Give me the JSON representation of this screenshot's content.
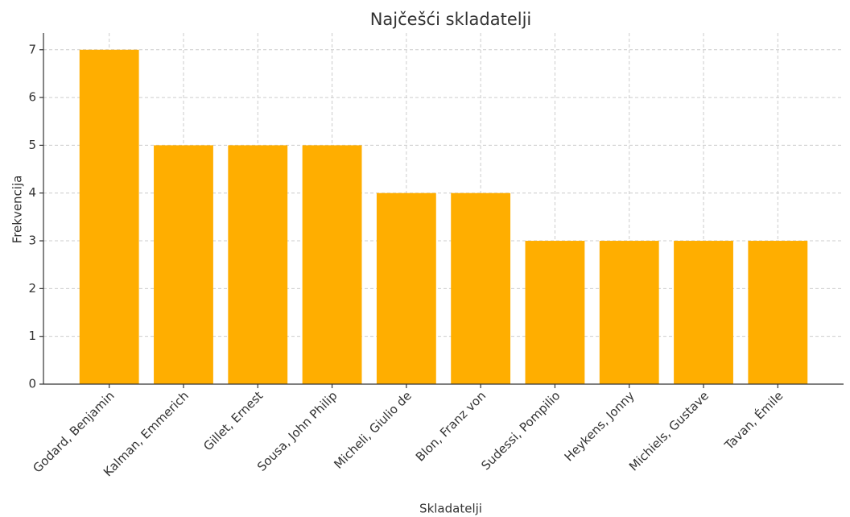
{
  "chart_data": {
    "type": "bar",
    "title": "Najčešći skladatelji",
    "xlabel": "Skladatelji",
    "ylabel": "Frekvencija",
    "categories": [
      "Godard, Benjamin",
      "Kalman, Emmerich",
      "Gillet, Ernest",
      "Sousa, John Philip",
      "Micheli, Giulio de",
      "Blon, Franz von",
      "Sudessi, Pompilio",
      "Heykens, Jonny",
      "Michiels, Gustave",
      "Tavan, Émile"
    ],
    "values": [
      7,
      5,
      5,
      5,
      4,
      4,
      3,
      3,
      3,
      3
    ],
    "color": "#ffae00",
    "ylim": [
      0,
      7.35
    ],
    "yticks": [
      0,
      1,
      2,
      3,
      4,
      5,
      6,
      7
    ],
    "grid": true
  }
}
